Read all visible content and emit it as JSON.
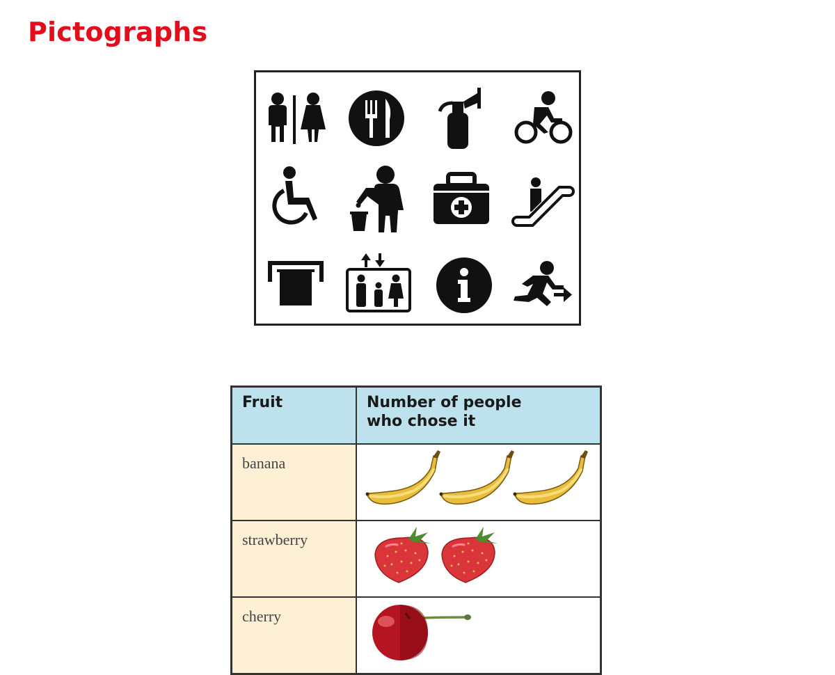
{
  "page": {
    "title": "Pictographs"
  },
  "icon_panel": {
    "icons": [
      "restroom-icon",
      "restaurant-icon",
      "fire-extinguisher-icon",
      "bicycle-icon",
      "wheelchair-accessible-icon",
      "trash-disposal-icon",
      "first-aid-kit-icon",
      "escalator-icon",
      "atm-icon",
      "elevator-icon",
      "information-icon",
      "emergency-exit-icon"
    ]
  },
  "chart_data": {
    "type": "table",
    "columns": [
      "Fruit",
      "Number of people who chose it"
    ],
    "header_lines": [
      "Number of people",
      "who chose it"
    ],
    "rows": [
      {
        "category": "banana",
        "value": 3,
        "symbol": "banana-icon"
      },
      {
        "category": "strawberry",
        "value": 2,
        "symbol": "strawberry-icon"
      },
      {
        "category": "cherry",
        "value": 1,
        "symbol": "cherry-icon"
      }
    ],
    "colors": {
      "header": "#bde2ed",
      "label_column": "#fdf0d5",
      "title": "#e30d1b"
    }
  }
}
